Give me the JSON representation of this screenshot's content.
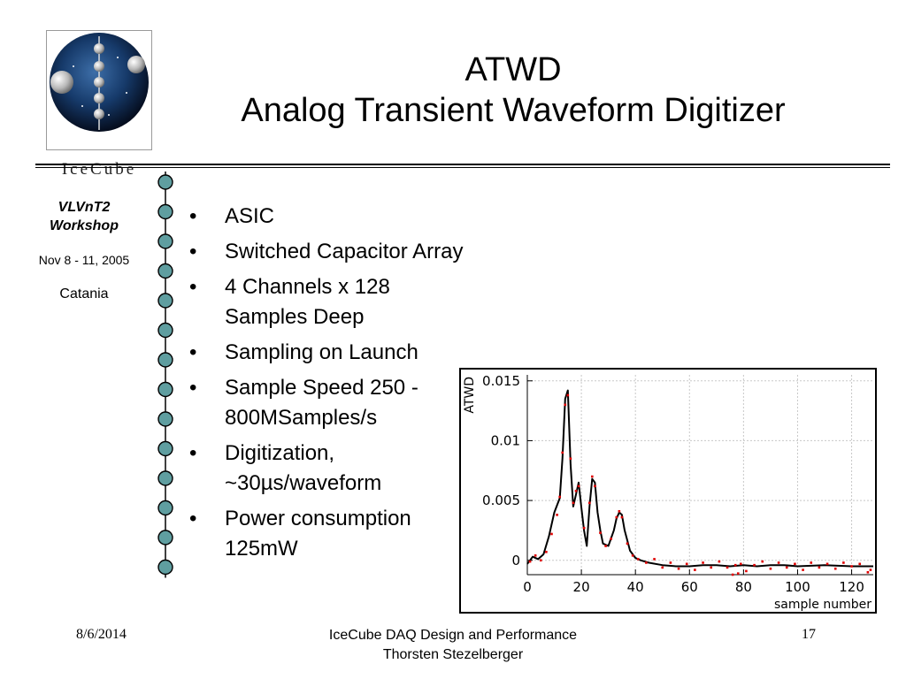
{
  "logo": {
    "text": "IceCube"
  },
  "title": {
    "line1": "ATWD",
    "line2": "Analog Transient Waveform Digitizer"
  },
  "sidebar": {
    "workshop_line1": "VLVnT2",
    "workshop_line2": "Workshop",
    "dates": "Nov 8 - 11, 2005",
    "location": "Catania"
  },
  "bullets": [
    "ASIC",
    "Switched Capacitor Array",
    "4 Channels x 128 Samples Deep",
    "Sampling on Launch",
    "Sample Speed 250 - 800MSamples/s",
    "Digitization, ~30µs/waveform",
    "Power consumption 125mW"
  ],
  "footer": {
    "date": "8/6/2014",
    "presentation": "IceCube DAQ Design and Performance",
    "author": "Thorsten Stezelberger",
    "page_number": "17"
  },
  "colors": {
    "fit_line": "#000000",
    "data_points": "#e00000",
    "chain_node": "#5f9ea0"
  },
  "chart_data": {
    "type": "line",
    "title": "",
    "xlabel": "sample number",
    "ylabel": "ATWD",
    "xlim": [
      0,
      128
    ],
    "ylim": [
      -0.0012,
      0.0155
    ],
    "xticks": [
      0,
      20,
      40,
      60,
      80,
      100,
      120
    ],
    "yticks": [
      0,
      0.005,
      0.01,
      0.015
    ],
    "xtick_labels": [
      "0",
      "20",
      "40",
      "60",
      "80",
      "100",
      "120"
    ],
    "ytick_labels": [
      "0",
      "0.005",
      "0.01",
      "0.015"
    ],
    "grid": true,
    "series": [
      {
        "x": [
          0,
          2,
          4,
          6,
          8,
          10,
          12,
          13,
          14,
          15,
          16,
          17,
          18,
          19,
          20,
          21,
          22,
          23,
          24,
          25,
          26,
          27,
          28,
          30,
          32,
          33,
          34,
          35,
          36,
          38,
          40,
          42,
          45,
          50,
          55,
          60,
          65,
          70,
          75,
          80,
          85,
          90,
          95,
          100,
          110,
          120,
          128
        ],
        "y": [
          -0.0003,
          0.0003,
          0.0001,
          0.0005,
          0.002,
          0.004,
          0.0052,
          0.0085,
          0.0135,
          0.0142,
          0.008,
          0.0045,
          0.0055,
          0.0065,
          0.0044,
          0.0025,
          0.0012,
          0.0045,
          0.0068,
          0.0065,
          0.004,
          0.0025,
          0.0014,
          0.0012,
          0.0025,
          0.0035,
          0.004,
          0.0038,
          0.0025,
          0.0008,
          0.0002,
          0,
          -0.0002,
          -0.0004,
          -0.0005,
          -0.0005,
          -0.0004,
          -0.0004,
          -0.0005,
          -0.0004,
          -0.0005,
          -0.0004,
          -0.0004,
          -0.0005,
          -0.0004,
          -0.0005,
          -0.0005
        ]
      },
      {
        "x": [
          1,
          3,
          5,
          7,
          9,
          11,
          12,
          13,
          14,
          15,
          16,
          17,
          18,
          19,
          21,
          23,
          24,
          25,
          27,
          29,
          31,
          33,
          34,
          35,
          37,
          39,
          41,
          44,
          47,
          50,
          53,
          56,
          59,
          62,
          65,
          68,
          71,
          74,
          76,
          77,
          78,
          79,
          81,
          84,
          87,
          90,
          93,
          96,
          99,
          102,
          105,
          108,
          111,
          114,
          117,
          120,
          123,
          126,
          127
        ],
        "y": [
          -0.0001,
          0.0004,
          0.0,
          0.0007,
          0.0022,
          0.0038,
          0.0053,
          0.009,
          0.013,
          0.0138,
          0.0085,
          0.0048,
          0.0058,
          0.0062,
          0.0027,
          0.0048,
          0.007,
          0.0062,
          0.0023,
          0.0012,
          0.0018,
          0.0036,
          0.0041,
          0.0036,
          0.0014,
          0.0004,
          0.0001,
          -0.0002,
          0.0001,
          -0.0006,
          -0.0002,
          -0.0007,
          -0.0003,
          -0.0008,
          -0.0002,
          -0.0006,
          -0.0001,
          -0.0006,
          -0.0012,
          -0.0004,
          -0.0011,
          -0.0003,
          -0.0009,
          -0.0004,
          -0.0001,
          -0.0007,
          -0.0002,
          -0.0006,
          -0.0003,
          -0.0008,
          -0.0002,
          -0.0006,
          -0.0003,
          -0.0007,
          -0.0002,
          -0.0005,
          -0.0003,
          -0.001,
          -0.0008
        ]
      }
    ]
  }
}
